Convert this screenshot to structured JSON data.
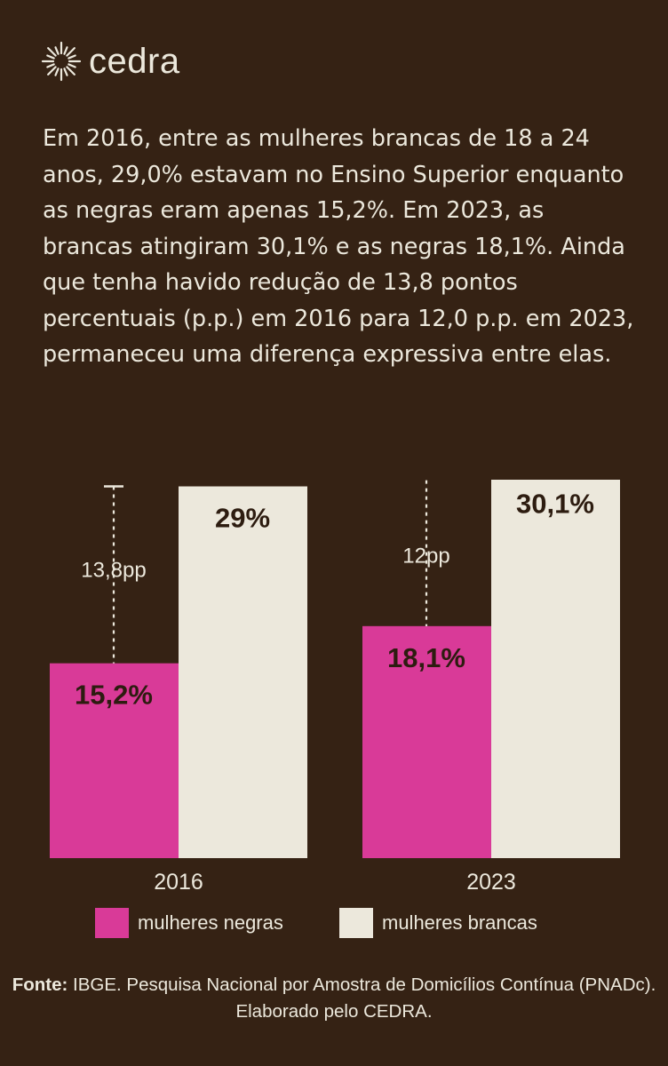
{
  "brand": {
    "name": "cedra",
    "logo_icon": "sunburst-icon"
  },
  "intro_text": "Em 2016, entre as mulheres brancas de 18 a 24 anos, 29,0% estavam no Ensino Superior enquanto as negras eram apenas 15,2%. Em 2023, as brancas atingiram 30,1% e as negras 18,1%. Ainda que tenha havido redução de 13,8 pontos percentuais (p.p.) em 2016 para 12,0 p.p. em 2023, permaneceu uma diferença expressiva entre elas.",
  "colors": {
    "background": "#352214",
    "negras": "#d93a98",
    "brancas": "#ece8dc",
    "text_light": "#ece8dc",
    "text_dark": "#2d1c10"
  },
  "chart_data": {
    "type": "bar",
    "categories": [
      "2016",
      "2023"
    ],
    "series": [
      {
        "name": "mulheres negras",
        "values": [
          15.2,
          18.1
        ],
        "labels": [
          "15,2%",
          "18,1%"
        ]
      },
      {
        "name": "mulheres brancas",
        "values": [
          29.0,
          30.1
        ],
        "labels": [
          "29%",
          "30,1%"
        ]
      }
    ],
    "gap_annotations": [
      "13,8pp",
      "12pp"
    ],
    "ylim": [
      0,
      32
    ],
    "grid": false,
    "legend": "bottom"
  },
  "source": {
    "label": "Fonte:",
    "text": "IBGE. Pesquisa Nacional por Amostra de Domicílios Contínua (PNADc). Elaborado pelo CEDRA."
  }
}
